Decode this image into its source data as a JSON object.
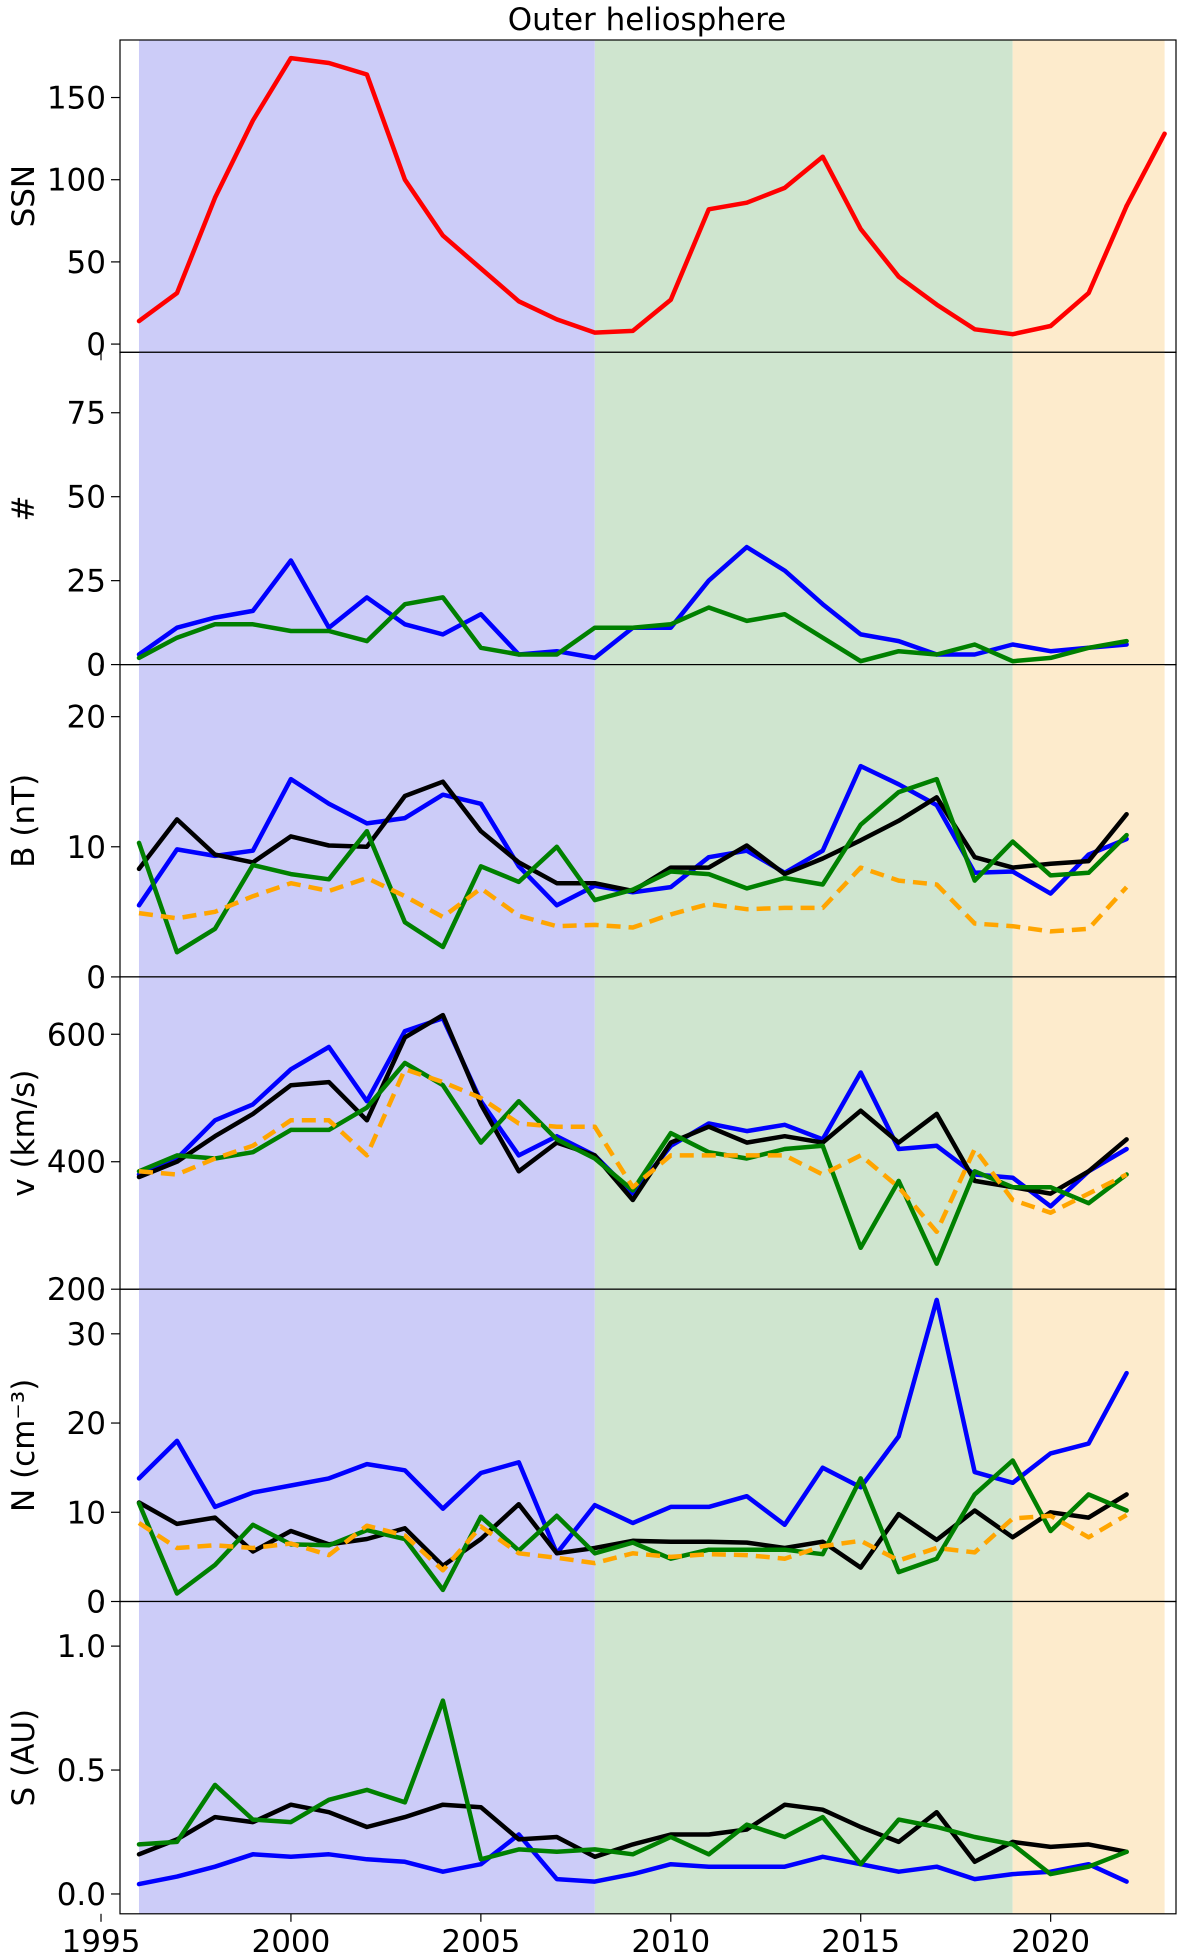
{
  "chart_data": {
    "type": "line",
    "title": "Outer heliosphere",
    "xlim": [
      1995.5,
      2023.3
    ],
    "x_ticks": [
      1995,
      2000,
      2005,
      2010,
      2015,
      2020
    ],
    "x_tick_labels": [
      "1995",
      "2000",
      "2005",
      "2010",
      "2015",
      "2020"
    ],
    "years": [
      1996,
      1997,
      1998,
      1999,
      2000,
      2001,
      2002,
      2003,
      2004,
      2005,
      2006,
      2007,
      2008,
      2009,
      2010,
      2011,
      2012,
      2013,
      2014,
      2015,
      2016,
      2017,
      2018,
      2019,
      2020,
      2021,
      2022
    ],
    "shaded_intervals": [
      {
        "from": 1996,
        "to": 2008,
        "color": "#ccccf8"
      },
      {
        "from": 2008,
        "to": 2019,
        "color": "#cfe5cf"
      },
      {
        "from": 2019,
        "to": 2023,
        "color": "#fdebcc"
      }
    ],
    "panels": [
      {
        "ylabel": "SSN",
        "ylim": [
          -5,
          185
        ],
        "y_ticks": [
          0,
          50,
          100,
          150
        ],
        "y_tick_labels": [
          "0",
          "50",
          "100",
          "150"
        ],
        "series": [
          {
            "color": "#ff0000",
            "dashed": false,
            "values": [
              14,
              31,
              89,
              136,
              174,
              171,
              164,
              100,
              66,
              46,
              26,
              15,
              7,
              8,
              27,
              82,
              86,
              95,
              114,
              70,
              41,
              24,
              9,
              6,
              11,
              31,
              84
            ]
          },
          {
            "color": "#ff0000",
            "dashed": false,
            "x": [
              2022,
              2023
            ],
            "values": [
              84,
              128
            ]
          }
        ]
      },
      {
        "ylabel": "#",
        "ylim": [
          0,
          93
        ],
        "y_ticks": [
          0,
          25,
          50,
          75
        ],
        "y_tick_labels": [
          "0",
          "25",
          "50",
          "75"
        ],
        "series": [
          {
            "color": "#0000ff",
            "dashed": false,
            "values": [
              3,
              11,
              14,
              16,
              31,
              11,
              20,
              12,
              9,
              15,
              3,
              4,
              2,
              11,
              11,
              25,
              35,
              28,
              18,
              9,
              7,
              3,
              3,
              6,
              4,
              5,
              6
            ]
          },
          {
            "color": "#008000",
            "dashed": false,
            "values": [
              2,
              8,
              12,
              12,
              10,
              10,
              7,
              18,
              20,
              5,
              3,
              3,
              11,
              11,
              12,
              17,
              13,
              15,
              8,
              1,
              4,
              3,
              6,
              1,
              2,
              5,
              7
            ]
          }
        ]
      },
      {
        "ylabel": "B (nT)",
        "ylim": [
          0,
          24
        ],
        "y_ticks": [
          0,
          10,
          20
        ],
        "y_tick_labels": [
          "0",
          "10",
          "20"
        ],
        "series": [
          {
            "color": "#0000ff",
            "dashed": false,
            "values": [
              5.5,
              9.8,
              9.3,
              9.7,
              15.2,
              13.3,
              11.8,
              12.2,
              14.0,
              13.3,
              8.5,
              5.5,
              7.0,
              6.5,
              6.9,
              9.2,
              9.7,
              8.0,
              9.7,
              16.2,
              14.8,
              13.2,
              8.0,
              8.1,
              6.4,
              9.4,
              10.6
            ]
          },
          {
            "color": "#000000",
            "dashed": false,
            "values": [
              8.3,
              12.1,
              9.4,
              8.8,
              10.8,
              10.1,
              10.0,
              13.9,
              15.0,
              11.2,
              8.8,
              7.2,
              7.2,
              6.6,
              8.4,
              8.4,
              10.1,
              7.9,
              9.1,
              10.5,
              12.0,
              13.8,
              9.2,
              8.4,
              8.7,
              8.9,
              12.5
            ]
          },
          {
            "color": "#008000",
            "dashed": false,
            "values": [
              10.3,
              1.9,
              3.7,
              8.6,
              7.9,
              7.5,
              11.2,
              4.2,
              2.3,
              8.5,
              7.3,
              10.0,
              5.9,
              6.7,
              8.1,
              7.9,
              6.8,
              7.6,
              7.1,
              11.7,
              14.2,
              15.2,
              7.4,
              10.4,
              7.8,
              8.0,
              10.9
            ]
          },
          {
            "color": "#ffa500",
            "dashed": true,
            "values": [
              4.9,
              4.5,
              5.0,
              6.2,
              7.2,
              6.6,
              7.6,
              6.2,
              4.6,
              6.8,
              4.7,
              3.9,
              4.0,
              3.8,
              4.8,
              5.6,
              5.2,
              5.3,
              5.3,
              8.4,
              7.4,
              7.1,
              4.1,
              3.9,
              3.5,
              3.7,
              6.9
            ]
          }
        ]
      },
      {
        "ylabel": "v (km/s)",
        "ylim": [
          200,
          690
        ],
        "y_ticks": [
          200,
          400,
          600
        ],
        "y_tick_labels": [
          "200",
          "400",
          "600"
        ],
        "series": [
          {
            "color": "#0000ff",
            "dashed": false,
            "values": [
              380,
              405,
              465,
              490,
              545,
              580,
              495,
              605,
              625,
              495,
              410,
              440,
              410,
              350,
              425,
              460,
              448,
              458,
              435,
              540,
              420,
              425,
              380,
              375,
              330,
              385,
              420
            ]
          },
          {
            "color": "#000000",
            "dashed": false,
            "values": [
              376,
              400,
              440,
              475,
              520,
              525,
              465,
              595,
              630,
              490,
              385,
              430,
              410,
              340,
              430,
              455,
              430,
              440,
              430,
              480,
              430,
              475,
              370,
              360,
              350,
              385,
              435
            ]
          },
          {
            "color": "#008000",
            "dashed": false,
            "values": [
              385,
              410,
              405,
              415,
              450,
              450,
              485,
              555,
              520,
              430,
              495,
              435,
              405,
              355,
              445,
              415,
              405,
              420,
              425,
              265,
              370,
              240,
              385,
              360,
              360,
              335,
              380
            ]
          },
          {
            "color": "#ffa500",
            "dashed": true,
            "values": [
              385,
              380,
              405,
              425,
              465,
              465,
              410,
              545,
              525,
              500,
              460,
              455,
              455,
              360,
              410,
              410,
              410,
              410,
              380,
              410,
              360,
              290,
              420,
              340,
              320,
              350,
              380
            ]
          }
        ]
      },
      {
        "ylabel": "N (cm⁻³)",
        "ylim": [
          0,
          35
        ],
        "y_ticks": [
          0,
          10,
          20,
          30
        ],
        "y_tick_labels": [
          "0",
          "10",
          "20",
          "30"
        ],
        "series": [
          {
            "color": "#0000ff",
            "dashed": false,
            "values": [
              13.8,
              18.0,
              10.6,
              12.2,
              13.0,
              13.8,
              15.4,
              14.7,
              10.4,
              14.4,
              15.6,
              5.4,
              10.8,
              8.8,
              10.6,
              10.6,
              11.8,
              8.6,
              15.0,
              12.8,
              18.5,
              33.8,
              14.5,
              13.3,
              16.6,
              17.7,
              25.6
            ]
          },
          {
            "color": "#000000",
            "dashed": false,
            "values": [
              11.1,
              8.7,
              9.4,
              5.6,
              7.9,
              6.4,
              7.0,
              8.2,
              4.0,
              7.0,
              10.9,
              5.4,
              6.0,
              6.8,
              6.7,
              6.7,
              6.6,
              6.0,
              6.7,
              3.8,
              9.8,
              6.9,
              10.2,
              7.2,
              10.0,
              9.4,
              12.0
            ]
          },
          {
            "color": "#008000",
            "dashed": false,
            "values": [
              11.0,
              0.9,
              4.1,
              8.6,
              6.4,
              6.3,
              8.0,
              7.0,
              1.3,
              9.5,
              5.7,
              9.6,
              5.4,
              6.6,
              4.8,
              5.8,
              5.8,
              5.8,
              5.3,
              13.8,
              3.3,
              4.8,
              12.0,
              15.8,
              7.9,
              12.0,
              10.2
            ]
          },
          {
            "color": "#ffa500",
            "dashed": true,
            "values": [
              8.8,
              6.0,
              6.3,
              6.0,
              6.5,
              5.2,
              8.5,
              7.4,
              3.5,
              8.4,
              5.4,
              4.9,
              4.3,
              5.4,
              5.0,
              5.3,
              5.2,
              4.8,
              6.2,
              6.8,
              4.6,
              6.0,
              5.5,
              9.3,
              9.6,
              7.2,
              9.7
            ]
          }
        ]
      },
      {
        "ylabel": "S (AU)",
        "ylim": [
          -0.08,
          1.18
        ],
        "y_ticks": [
          0.0,
          0.5,
          1.0
        ],
        "y_tick_labels": [
          "0.0",
          "0.5",
          "1.0"
        ],
        "series": [
          {
            "color": "#0000ff",
            "dashed": false,
            "values": [
              0.04,
              0.07,
              0.11,
              0.16,
              0.15,
              0.16,
              0.14,
              0.13,
              0.09,
              0.12,
              0.24,
              0.06,
              0.05,
              0.08,
              0.12,
              0.11,
              0.11,
              0.11,
              0.15,
              0.12,
              0.09,
              0.11,
              0.06,
              0.08,
              0.09,
              0.12,
              0.05
            ]
          },
          {
            "color": "#000000",
            "dashed": false,
            "values": [
              0.16,
              0.22,
              0.31,
              0.29,
              0.36,
              0.33,
              0.27,
              0.31,
              0.36,
              0.35,
              0.22,
              0.23,
              0.15,
              0.2,
              0.24,
              0.24,
              0.26,
              0.36,
              0.34,
              0.27,
              0.21,
              0.33,
              0.13,
              0.21,
              0.19,
              0.2,
              0.17
            ]
          },
          {
            "color": "#008000",
            "dashed": false,
            "values": [
              0.2,
              0.21,
              0.44,
              0.3,
              0.29,
              0.38,
              0.42,
              0.37,
              0.78,
              0.14,
              0.18,
              0.17,
              0.18,
              0.16,
              0.23,
              0.16,
              0.28,
              0.23,
              0.31,
              0.12,
              0.3,
              0.27,
              0.23,
              0.2,
              0.08,
              0.11,
              0.17
            ]
          }
        ]
      }
    ]
  }
}
